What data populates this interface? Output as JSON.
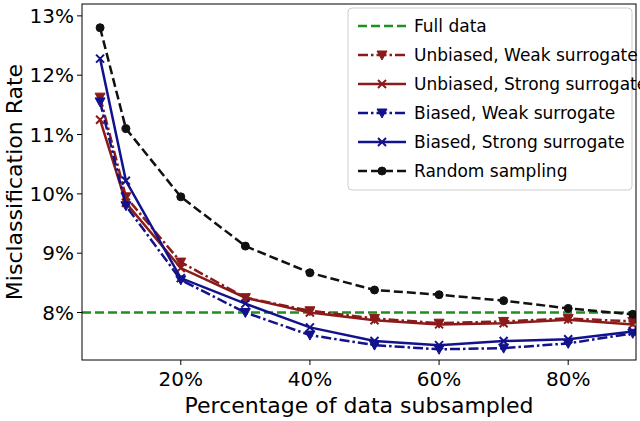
{
  "chart_data": {
    "type": "line",
    "x_label": "Percentage of data subsampled",
    "y_label": "Misclassification Rate",
    "x": [
      7.5,
      11.5,
      20,
      30,
      40,
      50,
      60,
      70,
      80,
      90
    ],
    "xlim": [
      4.7,
      90.5
    ],
    "xticks": [
      {
        "value": 20,
        "label": "20%"
      },
      {
        "value": 40,
        "label": "40%"
      },
      {
        "value": 60,
        "label": "60%"
      },
      {
        "value": 80,
        "label": "80%"
      }
    ],
    "ylim": [
      7.2,
      13.2
    ],
    "yticks": [
      {
        "value": 8,
        "label": "8%"
      },
      {
        "value": 9,
        "label": "9%"
      },
      {
        "value": 10,
        "label": "10%"
      },
      {
        "value": 11,
        "label": "11%"
      },
      {
        "value": 12,
        "label": "12%"
      },
      {
        "value": 13,
        "label": "13%"
      }
    ],
    "grid": false,
    "legend": "upper right",
    "reference_line": {
      "name": "Full data",
      "value": 8,
      "color": "#1f8f1f",
      "line_style": "dashed"
    },
    "series": [
      {
        "name": "Unbiased, Weak surrogate",
        "color": "#8b1a1a",
        "marker": "triangle_down",
        "line_style": "dashdot",
        "values": [
          11.63,
          9.95,
          8.85,
          8.25,
          8.03,
          7.9,
          7.82,
          7.85,
          7.9,
          7.85
        ]
      },
      {
        "name": "Unbiased, Strong surrogate",
        "color": "#8b1a1a",
        "marker": "x",
        "line_style": "solid",
        "values": [
          11.25,
          9.85,
          8.75,
          8.25,
          8.0,
          7.87,
          7.8,
          7.82,
          7.88,
          7.8
        ]
      },
      {
        "name": "Biased, Weak surrogate",
        "color": "#12128c",
        "marker": "triangle_down",
        "line_style": "dashdot",
        "values": [
          11.55,
          9.8,
          8.55,
          8.0,
          7.62,
          7.45,
          7.38,
          7.4,
          7.48,
          7.65
        ]
      },
      {
        "name": "Biased, Strong surrogate",
        "color": "#12128c",
        "marker": "x",
        "line_style": "solid",
        "values": [
          12.28,
          10.22,
          8.58,
          8.15,
          7.75,
          7.52,
          7.45,
          7.52,
          7.55,
          7.68
        ]
      },
      {
        "name": "Random sampling",
        "color": "#111111",
        "marker": "circle",
        "line_style": "dashed",
        "values": [
          12.8,
          11.1,
          9.95,
          9.12,
          8.67,
          8.38,
          8.3,
          8.2,
          8.07,
          7.97
        ]
      }
    ]
  }
}
